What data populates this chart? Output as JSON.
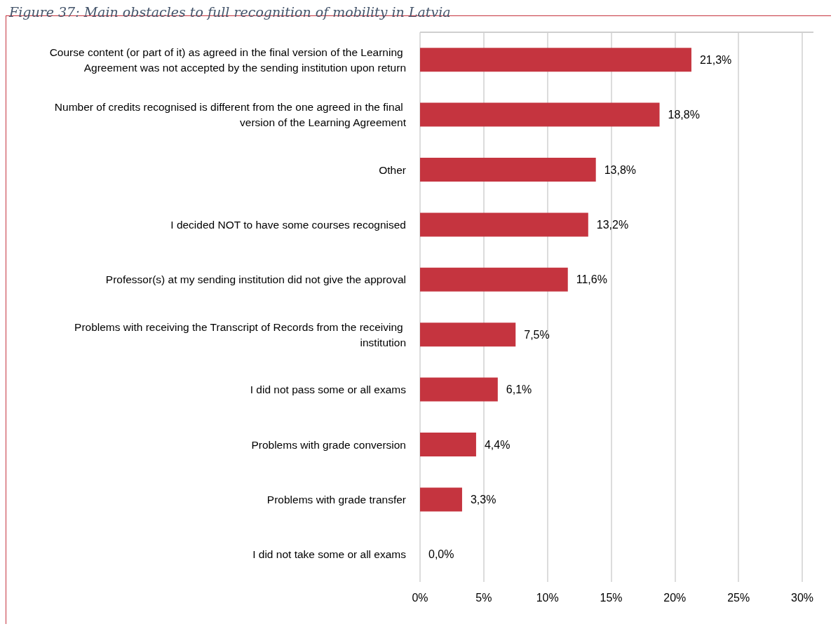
{
  "chart_data": {
    "type": "bar",
    "orientation": "horizontal",
    "title": "Figure 37: Main obstacles to full recognition of mobility in Latvia",
    "categories": [
      "Course content (or part of it) as agreed in the final version of the Learning Agreement was not accepted by the sending institution upon return",
      "Number of credits recognised is different from the one agreed in the final version of the Learning Agreement",
      "Other",
      "I decided NOT to have some courses recognised",
      "Professor(s) at my sending institution did not give the approval",
      "Problems with receiving the Transcript of Records from the receiving institution",
      "I did not pass some or all exams",
      "Problems with grade conversion",
      "Problems with grade transfer",
      "I did not take some or all exams"
    ],
    "values": [
      21.3,
      18.8,
      13.8,
      13.2,
      11.6,
      7.5,
      6.1,
      4.4,
      3.3,
      0.0
    ],
    "value_labels": [
      "21,3%",
      "18,8%",
      "13,8%",
      "13,2%",
      "11,6%",
      "7,5%",
      "6,1%",
      "4,4%",
      "3,3%",
      "0,0%"
    ],
    "color": "#c5343f",
    "xlim": [
      0,
      30
    ],
    "xticks": [
      {
        "value": 0,
        "label": "0%"
      },
      {
        "value": 5,
        "label": "5%"
      },
      {
        "value": 10,
        "label": "10%"
      },
      {
        "value": 15,
        "label": "15%"
      },
      {
        "value": 20,
        "label": "20%"
      },
      {
        "value": 25,
        "label": "25%"
      },
      {
        "value": 30,
        "label": "30%"
      }
    ],
    "grid": "x"
  }
}
